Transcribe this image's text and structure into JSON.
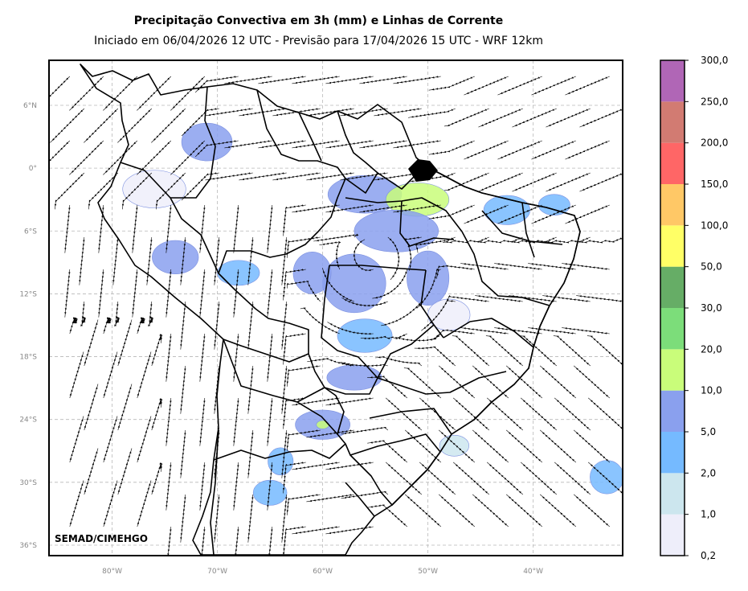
{
  "title": "Precipitação Convectiva em 3h (mm) e Linhas de Corrente",
  "subtitle": "Iniciado em 06/04/2026 12 UTC - Previsão para 17/04/2026 15 UTC - WRF 12km",
  "credit": "SEMAD/CIMEHGO",
  "map": {
    "lon_range": [
      -86,
      -31.5
    ],
    "lat_range": [
      -37,
      10.3
    ],
    "lat_ticks": [
      {
        "value": 6,
        "label": "6°N"
      },
      {
        "value": 0,
        "label": "0°"
      },
      {
        "value": -6,
        "label": "6°S"
      },
      {
        "value": -12,
        "label": "12°S"
      },
      {
        "value": -18,
        "label": "18°S"
      },
      {
        "value": -24,
        "label": "24°S"
      },
      {
        "value": -30,
        "label": "30°S"
      },
      {
        "value": -36,
        "label": "36°S"
      }
    ],
    "lon_ticks": [
      {
        "value": -80,
        "label": "80°W"
      },
      {
        "value": -70,
        "label": "70°W"
      },
      {
        "value": -60,
        "label": "60°W"
      },
      {
        "value": -50,
        "label": "50°W"
      },
      {
        "value": -40,
        "label": "40°W"
      }
    ],
    "grid": true
  },
  "colorbar": {
    "labels": [
      "0,2",
      "1,0",
      "2,0",
      "5,0",
      "10,0",
      "20,0",
      "30,0",
      "50,0",
      "100,0",
      "150,0",
      "200,0",
      "250,0",
      "300,0"
    ],
    "colors": [
      "#eeeefa",
      "#cce6ee",
      "#75baff",
      "#8aa0ee",
      "#c9fd7a",
      "#7cdd7a",
      "#66ad66",
      "#ffff66",
      "#ffc866",
      "#ff6666",
      "#d27b72",
      "#b066b6"
    ]
  },
  "precip_cells": [
    {
      "lon": -71,
      "lat": 2.5,
      "rx": 2.4,
      "ry": 1.8,
      "level": 3
    },
    {
      "lon": -74,
      "lat": -8.5,
      "rx": 2.2,
      "ry": 1.6,
      "level": 3
    },
    {
      "lon": -68,
      "lat": -10,
      "rx": 2.0,
      "ry": 1.2,
      "level": 2
    },
    {
      "lon": -56,
      "lat": -2.5,
      "rx": 3.5,
      "ry": 1.8,
      "level": 3
    },
    {
      "lon": -51,
      "lat": -3,
      "rx": 3.0,
      "ry": 1.6,
      "level": 4
    },
    {
      "lon": -53,
      "lat": -6,
      "rx": 4.0,
      "ry": 2.0,
      "level": 3
    },
    {
      "lon": -57,
      "lat": -11,
      "rx": 3.0,
      "ry": 2.8,
      "level": 3
    },
    {
      "lon": -50,
      "lat": -10.5,
      "rx": 2.0,
      "ry": 2.6,
      "level": 3
    },
    {
      "lon": -61,
      "lat": -10,
      "rx": 1.8,
      "ry": 2.0,
      "level": 3
    },
    {
      "lon": -56,
      "lat": -16,
      "rx": 2.6,
      "ry": 1.6,
      "level": 2
    },
    {
      "lon": -57,
      "lat": -20,
      "rx": 2.6,
      "ry": 1.2,
      "level": 3
    },
    {
      "lon": -60,
      "lat": -24.5,
      "rx": 2.6,
      "ry": 1.4,
      "level": 3
    },
    {
      "lon": -60,
      "lat": -24.5,
      "rx": 0.6,
      "ry": 0.4,
      "level": 4
    },
    {
      "lon": -64,
      "lat": -28,
      "rx": 1.2,
      "ry": 1.3,
      "level": 2
    },
    {
      "lon": -65,
      "lat": -31,
      "rx": 1.6,
      "ry": 1.2,
      "level": 2
    },
    {
      "lon": -42.5,
      "lat": -4,
      "rx": 2.2,
      "ry": 1.4,
      "level": 2
    },
    {
      "lon": -38,
      "lat": -3.5,
      "rx": 1.5,
      "ry": 1.0,
      "level": 2
    },
    {
      "lon": -33,
      "lat": -29.5,
      "rx": 1.6,
      "ry": 1.6,
      "level": 2
    },
    {
      "lon": -47.5,
      "lat": -26.5,
      "rx": 1.4,
      "ry": 1.0,
      "level": 1
    },
    {
      "lon": -76,
      "lat": -2,
      "rx": 3.0,
      "ry": 1.8,
      "level": 0
    },
    {
      "lon": -48,
      "lat": -14,
      "rx": 2.0,
      "ry": 1.5,
      "level": 0
    }
  ]
}
